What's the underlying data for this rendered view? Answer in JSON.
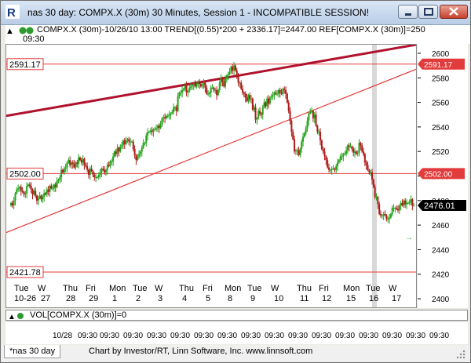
{
  "window": {
    "title": "nas 30 day: COMPX.X (30m) 30 Minutes, Session 1 - INCOMPATIBLE SESSION!",
    "app_icon": "investor-rt-logo-icon"
  },
  "infobar": {
    "line1": "COMPX.X (30m)-10/26/10 13:00  TREND[(0.55)*200 + 2336.17]=2447.00  REF[COMPX.X (30m)]=250",
    "time": "09:30"
  },
  "volume_label": "VOL[COMPX.X (30m)]=0",
  "footer": {
    "tab": "*nas 30 day",
    "credit": "Chart by Investor/RT, Linn Software, Inc. www.linnsoft.com"
  },
  "colors": {
    "trend": "#b0122e",
    "ref": "#e23b3b",
    "up_candle": "#23a31a",
    "down_candle": "#b01818",
    "last_price": "#000000",
    "highlight_band": "#d4d4d4"
  },
  "chart_data": {
    "type": "candlestick",
    "title": "",
    "symbol": "COMPX.X (30m)",
    "ylim": [
      2393,
      2607
    ],
    "y_ticks": [
      2400,
      2420,
      2440,
      2460,
      2480,
      2500,
      2520,
      2540,
      2560,
      2580,
      2600
    ],
    "reference_levels": [
      2591.17,
      2502.0,
      2421.78
    ],
    "last_price": 2476.01,
    "day_labels": [
      "Tue",
      "W",
      "Thu",
      "Fri",
      "Mon",
      "Tue",
      "W",
      "Thu",
      "Fri",
      "Mon",
      "Tue",
      "W",
      "Thu",
      "Fri",
      "Mon",
      "Tue",
      "W"
    ],
    "date_labels": [
      "10-26",
      "27",
      "28",
      "29",
      "1",
      "2",
      "3",
      "4",
      "5",
      "8",
      "9",
      "10",
      "11",
      "12",
      "15",
      "16",
      "17"
    ],
    "lower_time_labels": [
      "10/28",
      "09:30",
      "09:30",
      "09:30",
      "09:30",
      "09:30",
      "09:30",
      "09:30",
      "09:30",
      "09:30",
      "09:30",
      "09:30",
      "09:30",
      "09:30",
      "09:30",
      "09:30",
      "09:30"
    ],
    "trend_lines": [
      {
        "name": "upper channel",
        "y_start": 2549,
        "y_end": 2607
      },
      {
        "name": "lower channel",
        "y_start": 2454,
        "y_end": 2587
      }
    ],
    "closes": [
      2478,
      2476,
      2480,
      2486,
      2489,
      2490,
      2491,
      2488,
      2487,
      2485,
      2486,
      2492,
      2493,
      2492,
      2489,
      2485,
      2488,
      2484,
      2480,
      2482,
      2484,
      2481,
      2483,
      2486,
      2485,
      2489,
      2487,
      2492,
      2490,
      2490,
      2493,
      2491,
      2496,
      2497,
      2499,
      2505,
      2503,
      2506,
      2507,
      2511,
      2513,
      2509,
      2511,
      2510,
      2507,
      2511,
      2510,
      2515,
      2513,
      2511,
      2514,
      2509,
      2508,
      2505,
      2501,
      2506,
      2504,
      2501,
      2499,
      2499,
      2499,
      2501,
      2503,
      2506,
      2505,
      2503,
      2505,
      2509,
      2508,
      2512,
      2512,
      2516,
      2520,
      2518,
      2523,
      2520,
      2524,
      2525,
      2529,
      2526,
      2529,
      2530,
      2528,
      2528,
      2528,
      2522,
      2517,
      2513,
      2516,
      2518,
      2520,
      2523,
      2527,
      2527,
      2533,
      2536,
      2536,
      2537,
      2536,
      2538,
      2538,
      2539,
      2541,
      2539,
      2542,
      2547,
      2548,
      2547,
      2549,
      2549,
      2550,
      2551,
      2552,
      2556,
      2556,
      2553,
      2565,
      2568,
      2568,
      2570,
      2571,
      2574,
      2568,
      2569,
      2572,
      2573,
      2574,
      2575,
      2573,
      2575,
      2576,
      2575,
      2573,
      2574,
      2576,
      2572,
      2567,
      2567,
      2568,
      2572,
      2572,
      2570,
      2570,
      2566,
      2570,
      2576,
      2580,
      2577,
      2573,
      2579,
      2582,
      2583,
      2585,
      2589,
      2586,
      2590,
      2586,
      2581,
      2576,
      2576,
      2571,
      2568,
      2567,
      2564,
      2561,
      2566,
      2563,
      2563,
      2554,
      2556,
      2546,
      2547,
      2553,
      2551,
      2550,
      2556,
      2560,
      2557,
      2563,
      2559,
      2564,
      2565,
      2566,
      2568,
      2567,
      2567,
      2570,
      2568,
      2567,
      2571,
      2570,
      2567,
      2560,
      2553,
      2545,
      2536,
      2530,
      2520,
      2521,
      2521,
      2517,
      2522,
      2528,
      2532,
      2535,
      2539,
      2545,
      2551,
      2553,
      2553,
      2547,
      2550,
      2541,
      2536,
      2536,
      2529,
      2522,
      2520,
      2516,
      2513,
      2507,
      2505,
      2505,
      2506,
      2506,
      2505,
      2508,
      2511,
      2513,
      2516,
      2516,
      2518,
      2518,
      2521,
      2525,
      2524,
      2524,
      2522,
      2519,
      2520,
      2518,
      2519,
      2527,
      2525,
      2520,
      2518,
      2511,
      2509,
      2505,
      2503,
      2503,
      2497,
      2491,
      2483,
      2483,
      2477,
      2469,
      2468,
      2468,
      2469,
      2468,
      2465,
      2465,
      2466,
      2469,
      2474,
      2474,
      2474,
      2473,
      2472,
      2476,
      2478,
      2476,
      2480,
      2477,
      2478,
      2478,
      2479,
      2481,
      2476,
      2476
    ]
  }
}
